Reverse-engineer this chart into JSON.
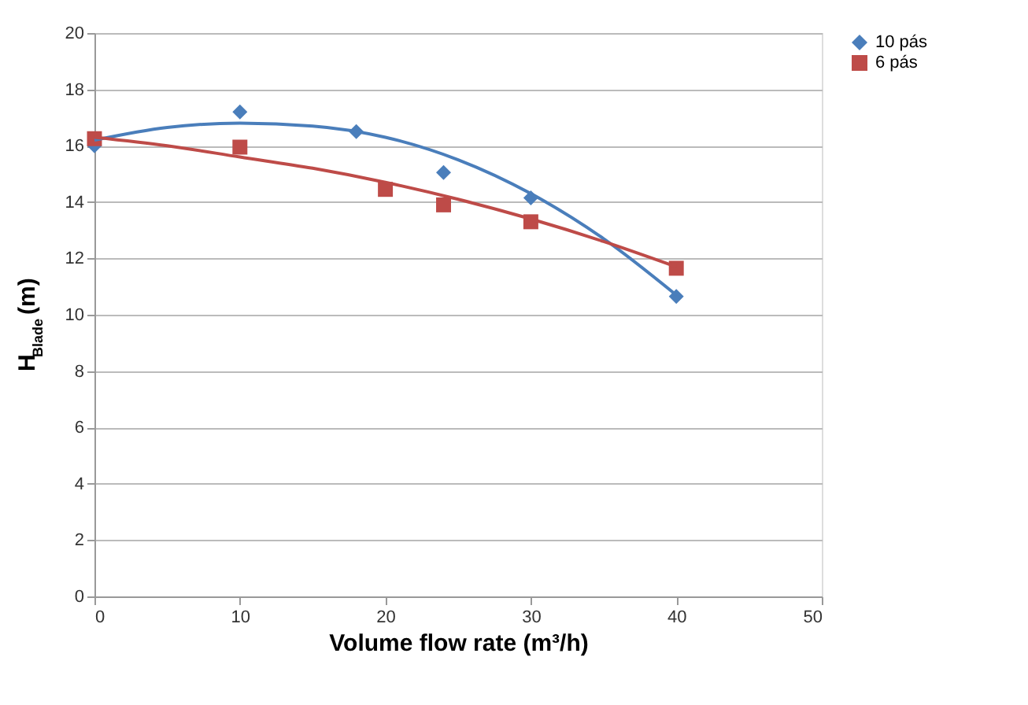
{
  "chart_data": {
    "type": "scatter",
    "xlabel": "Volume flow rate (m³/h)",
    "ylabel": "H$_{Blade}$ (m)",
    "xlim": [
      0,
      50
    ],
    "xticks": [
      0,
      10,
      20,
      30,
      40,
      50
    ],
    "ylim": [
      0,
      20
    ],
    "yticks": [
      0,
      2,
      4,
      6,
      8,
      10,
      12,
      14,
      16,
      18,
      20
    ],
    "grid": "y",
    "legend": "right",
    "series": [
      {
        "name": "10 pás",
        "marker": "diamond",
        "color": "#4a7ebb",
        "x": [
          0,
          10,
          18,
          24,
          30,
          40
        ],
        "values": [
          16.0,
          17.2,
          16.5,
          15.05,
          14.15,
          10.65
        ]
      },
      {
        "name": "6 pás",
        "marker": "square",
        "color": "#be4b48",
        "x": [
          0,
          10,
          20,
          24,
          30,
          40
        ],
        "values": [
          16.25,
          15.95,
          14.45,
          13.9,
          13.3,
          11.65
        ]
      },
      {
        "type": "line",
        "color": "#4a7ebb",
        "x": [
          0,
          5,
          10,
          15,
          20,
          25,
          30,
          35,
          40
        ],
        "values": [
          16.2,
          16.65,
          16.8,
          16.7,
          16.3,
          15.5,
          14.3,
          12.7,
          10.7
        ]
      },
      {
        "type": "line",
        "color": "#be4b48",
        "x": [
          0,
          5,
          10,
          15,
          20,
          25,
          30,
          35,
          40
        ],
        "values": [
          16.3,
          16.0,
          15.6,
          15.2,
          14.7,
          14.1,
          13.4,
          12.6,
          11.7
        ]
      }
    ]
  }
}
